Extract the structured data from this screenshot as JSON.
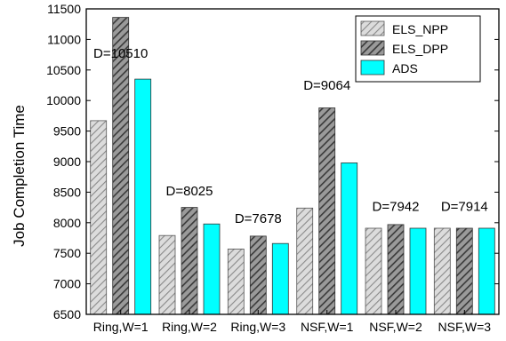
{
  "chart_data": {
    "type": "bar",
    "title": "",
    "xlabel": "",
    "ylabel": "Job Completion Time",
    "ylim": [
      6500,
      11500
    ],
    "ytick_step": 500,
    "grid": false,
    "legend_position": "top-right",
    "categories": [
      "Ring,W=1",
      "Ring,W=2",
      "Ring,W=3",
      "NSF,W=1",
      "NSF,W=2",
      "NSF,W=3"
    ],
    "series": [
      {
        "name": "ELS_NPP",
        "values": [
          9670,
          7790,
          7570,
          8240,
          7910,
          7910
        ],
        "fill": "#dcdcdc",
        "pattern": "light-diagonal-hatch"
      },
      {
        "name": "ELS_DPP",
        "values": [
          11360,
          8250,
          7780,
          9880,
          7970,
          7910
        ],
        "fill": "#5a5a5a",
        "pattern": "dark-diagonal-hatch"
      },
      {
        "name": "ADS",
        "values": [
          10350,
          7980,
          7660,
          8980,
          7910,
          7910
        ],
        "fill": "#00ffff",
        "pattern": "solid"
      }
    ],
    "annotations": [
      {
        "text": "D=10510",
        "category": "Ring,W=1",
        "y": 10700
      },
      {
        "text": "D=8025",
        "category": "Ring,W=2",
        "y": 8450
      },
      {
        "text": "D=7678",
        "category": "Ring,W=3",
        "y": 8000
      },
      {
        "text": "D=9064",
        "category": "NSF,W=1",
        "y": 10180
      },
      {
        "text": "D=7942",
        "category": "NSF,W=2",
        "y": 8190
      },
      {
        "text": "D=7914",
        "category": "NSF,W=3",
        "y": 8190
      }
    ]
  }
}
